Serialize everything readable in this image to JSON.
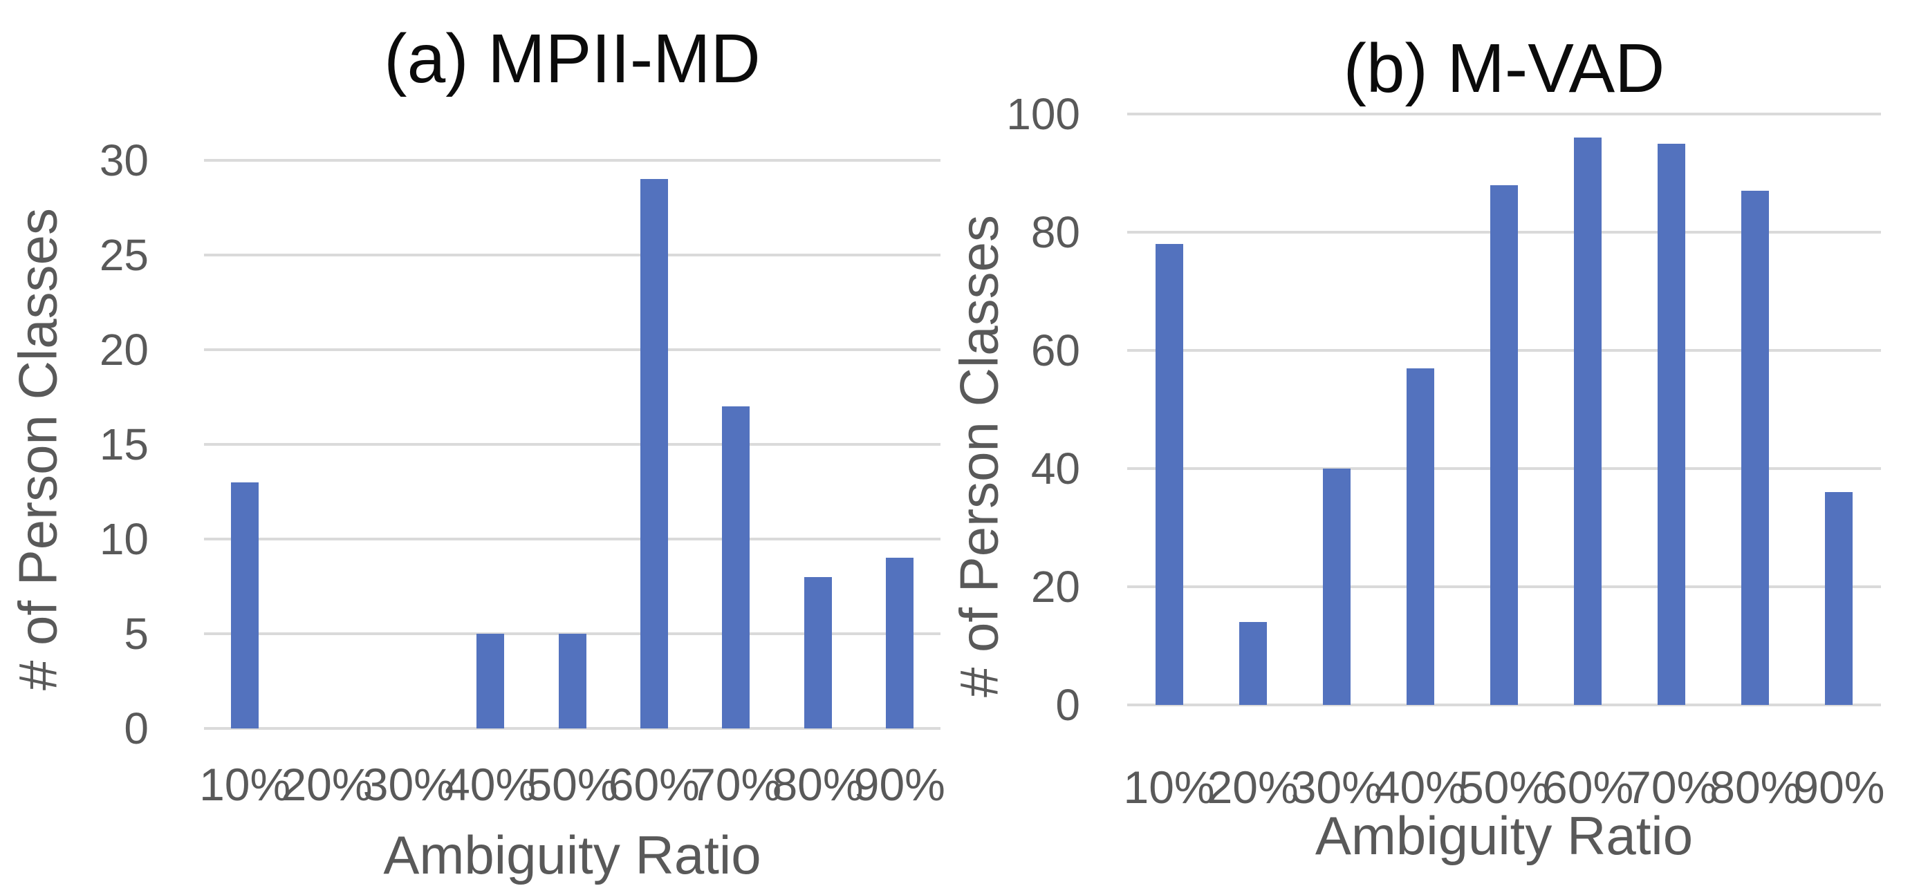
{
  "colors": {
    "background": "#FFFFFF",
    "bar": "#5372BE",
    "gridline": "#DADADA",
    "tick_text": "#595959",
    "title_text": "#0B0B0B"
  },
  "chart_data": [
    {
      "type": "bar",
      "title": "(a) MPII-MD",
      "xlabel": "Ambiguity Ratio",
      "ylabel": "# of Person Classes",
      "categories": [
        "10%",
        "20%",
        "30%",
        "40%",
        "50%",
        "60%",
        "70%",
        "80%",
        "90%"
      ],
      "values": [
        13,
        0,
        0,
        5,
        5,
        29,
        17,
        8,
        9
      ],
      "ylim": [
        0,
        30
      ],
      "yticks": [
        0,
        5,
        10,
        15,
        20,
        25,
        30
      ],
      "grid": true,
      "legend": "none"
    },
    {
      "type": "bar",
      "title": "(b) M-VAD",
      "xlabel": "Ambiguity Ratio",
      "ylabel": "# of Person Classes",
      "categories": [
        "10%",
        "20%",
        "30%",
        "40%",
        "50%",
        "60%",
        "70%",
        "80%",
        "90%"
      ],
      "values": [
        78,
        14,
        40,
        57,
        88,
        96,
        95,
        87,
        36
      ],
      "ylim": [
        0,
        100
      ],
      "yticks": [
        0,
        20,
        40,
        60,
        80,
        100
      ],
      "grid": true,
      "legend": "none"
    }
  ]
}
